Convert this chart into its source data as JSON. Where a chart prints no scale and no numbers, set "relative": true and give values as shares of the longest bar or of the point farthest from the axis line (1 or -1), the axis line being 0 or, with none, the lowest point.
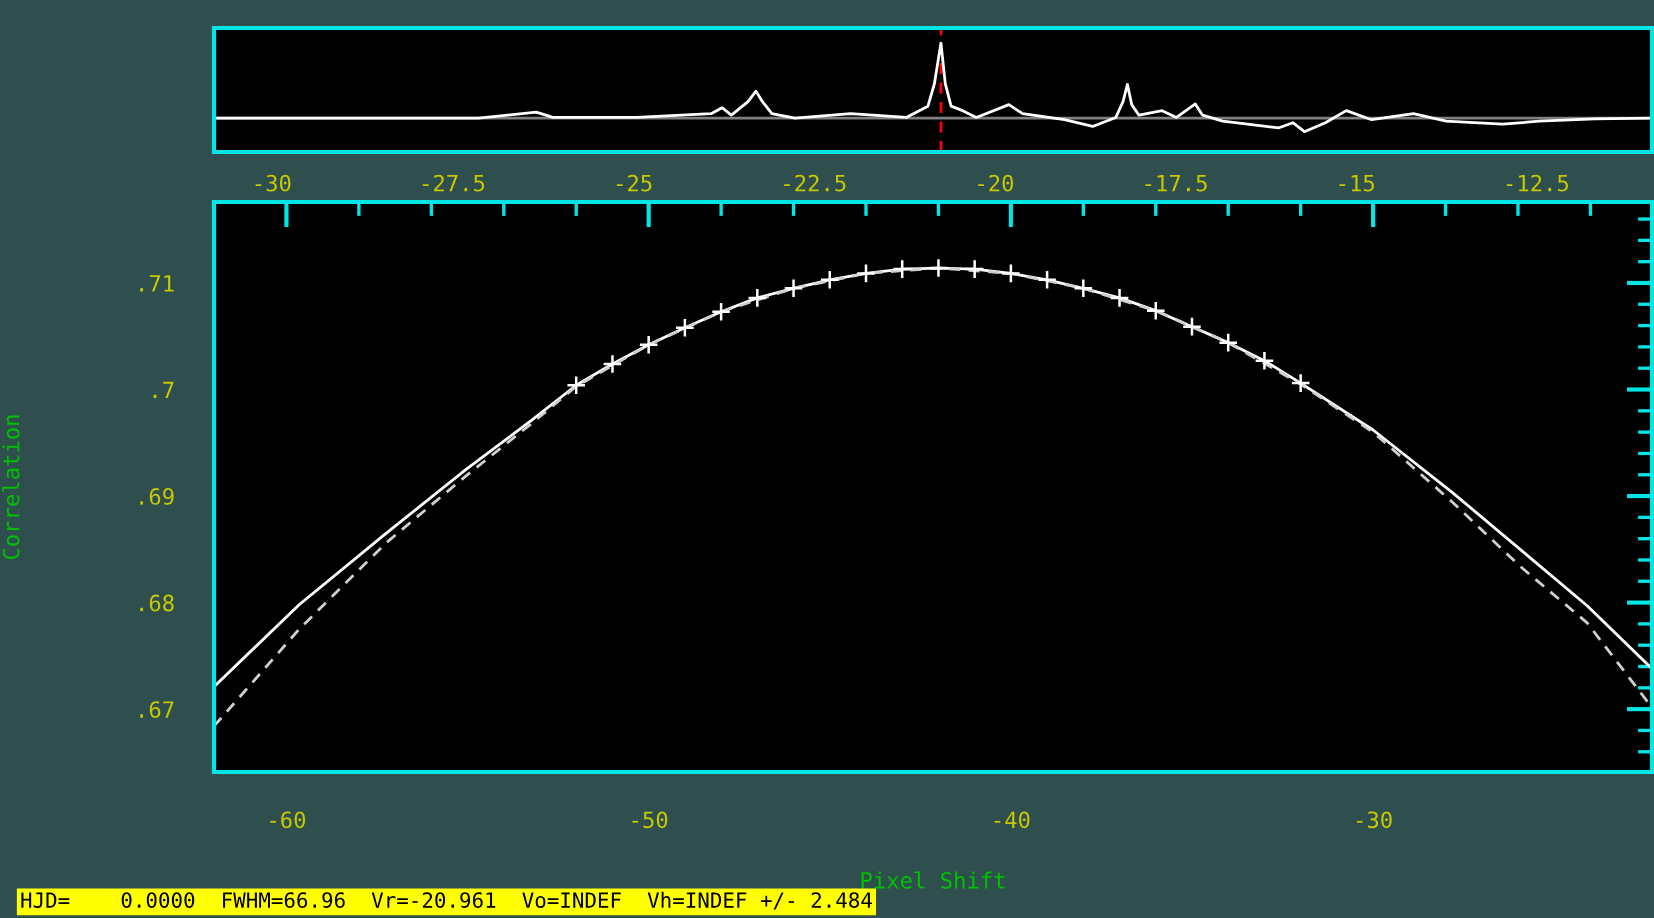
{
  "chart_data": [
    {
      "type": "line",
      "relative": true,
      "tick_labels": "x",
      "xlim": [
        -30.8,
        -10.9
      ],
      "xticks": [
        -30,
        -27.5,
        -25,
        -22.5,
        -20,
        -17.5,
        -15,
        -12.5
      ],
      "ref_lines": [
        {
          "axis": "y",
          "value": 0,
          "color": "#808080",
          "line_style": "solid"
        },
        {
          "axis": "x",
          "value": -20.74,
          "color": "#ff0000",
          "line_style": "dashed"
        }
      ],
      "series": [
        {
          "color": "#ffffff",
          "line_style": "solid",
          "marker": "none",
          "x": [
            -30.79,
            -29.07,
            -27.14,
            -26.34,
            -26.11,
            -24.95,
            -23.92,
            -23.77,
            -23.64,
            -23.41,
            -23.3,
            -23.21,
            -23.08,
            -22.76,
            -21.99,
            -21.22,
            -20.92,
            -20.83,
            -20.74,
            -20.68,
            -20.6,
            -20.44,
            -20.25,
            -19.8,
            -19.61,
            -19.03,
            -18.64,
            -18.32,
            -18.22,
            -18.16,
            -18.1,
            -18.0,
            -17.68,
            -17.48,
            -17.22,
            -17.12,
            -16.84,
            -16.07,
            -15.87,
            -15.71,
            -15.42,
            -15.13,
            -14.78,
            -14.2,
            -13.75,
            -12.97,
            -12.46,
            -11.69,
            -10.91
          ],
          "values": [
            0,
            0,
            0,
            0.08,
            0.01,
            0.01,
            0.06,
            0.14,
            0.04,
            0.22,
            0.36,
            0.22,
            0.06,
            0,
            0.06,
            0.01,
            0.16,
            0.46,
            1,
            0.46,
            0.16,
            0.1,
            0.01,
            0.18,
            0.06,
            -0.02,
            -0.11,
            0.01,
            0.22,
            0.45,
            0.18,
            0.04,
            0.1,
            0.01,
            0.19,
            0.04,
            -0.04,
            -0.13,
            -0.06,
            -0.18,
            -0.06,
            0.1,
            -0.02,
            0.06,
            -0.04,
            -0.08,
            -0.04,
            -0.01,
            0
          ]
        }
      ]
    },
    {
      "type": "line",
      "xlabel": "Pixel Shift",
      "ylabel": "Correlation",
      "xlim": [
        -62.0,
        -22.3
      ],
      "ylim": [
        0.6641,
        0.7176
      ],
      "xticks": [
        {
          "value": -60,
          "label": "-60"
        },
        {
          "value": -50,
          "label": "-50"
        },
        {
          "value": -40,
          "label": "-40"
        },
        {
          "value": -30,
          "label": "-30"
        },
        {
          "value": -58,
          "label": null
        },
        {
          "value": -56,
          "label": null
        },
        {
          "value": -54,
          "label": null
        },
        {
          "value": -52,
          "label": null
        },
        {
          "value": -48,
          "label": null
        },
        {
          "value": -46,
          "label": null
        },
        {
          "value": -44,
          "label": null
        },
        {
          "value": -42,
          "label": null
        },
        {
          "value": -38,
          "label": null
        },
        {
          "value": -36,
          "label": null
        },
        {
          "value": -34,
          "label": null
        },
        {
          "value": -32,
          "label": null
        },
        {
          "value": -28,
          "label": null
        },
        {
          "value": -26,
          "label": null
        },
        {
          "value": -24,
          "label": null
        }
      ],
      "yticks": [
        {
          "value": 0.67,
          "label": ".67"
        },
        {
          "value": 0.68,
          "label": ".68"
        },
        {
          "value": 0.69,
          "label": ".69"
        },
        {
          "value": 0.7,
          "label": ".7"
        },
        {
          "value": 0.71,
          "label": ".71"
        },
        {
          "value": 0.666,
          "label": null
        },
        {
          "value": 0.668,
          "label": null
        },
        {
          "value": 0.672,
          "label": null
        },
        {
          "value": 0.674,
          "label": null
        },
        {
          "value": 0.676,
          "label": null
        },
        {
          "value": 0.678,
          "label": null
        },
        {
          "value": 0.682,
          "label": null
        },
        {
          "value": 0.684,
          "label": null
        },
        {
          "value": 0.686,
          "label": null
        },
        {
          "value": 0.688,
          "label": null
        },
        {
          "value": 0.692,
          "label": null
        },
        {
          "value": 0.694,
          "label": null
        },
        {
          "value": 0.696,
          "label": null
        },
        {
          "value": 0.698,
          "label": null
        },
        {
          "value": 0.702,
          "label": null
        },
        {
          "value": 0.704,
          "label": null
        },
        {
          "value": 0.706,
          "label": null
        },
        {
          "value": 0.708,
          "label": null
        },
        {
          "value": 0.712,
          "label": null
        },
        {
          "value": 0.714,
          "label": null
        },
        {
          "value": 0.716,
          "label": null
        }
      ],
      "annotations": [
        "HJD=    0.0000  FWHM=66.96  Vr=-20.961  Vo=INDEF  Vh=INDEF +/- 2.484"
      ],
      "series": [
        {
          "color": "#ffffff",
          "line_style": "solid",
          "marker": "none",
          "x": [
            -62.0,
            -59.65,
            -57.25,
            -55.04,
            -53.2,
            -52,
            -51,
            -50,
            -49,
            -48,
            -47,
            -46,
            -45,
            -44,
            -43,
            -42,
            -41,
            -40,
            -39,
            -38,
            -37,
            -36,
            -35,
            -34,
            -33,
            -32,
            -30,
            -27.8,
            -25.94,
            -24.09,
            -22.3
          ],
          "values": [
            0.6721,
            0.6798,
            0.6865,
            0.6925,
            0.6972,
            0.7004,
            0.7024,
            0.7042,
            0.7058,
            0.7073,
            0.7086,
            0.7095,
            0.7103,
            0.7109,
            0.7113,
            0.7114,
            0.7113,
            0.7109,
            0.7103,
            0.7095,
            0.7086,
            0.7074,
            0.7059,
            0.7044,
            0.7027,
            0.7006,
            0.6962,
            0.6903,
            0.685,
            0.6797,
            0.6738
          ]
        },
        {
          "color": "#d0d0d0",
          "line_style": "dashed",
          "marker": "none",
          "x": [
            -62.0,
            -59.65,
            -57.25,
            -55.04,
            -53.2,
            -52,
            -50,
            -48,
            -46,
            -44,
            -42,
            -40,
            -38,
            -36,
            -34,
            -32,
            -30,
            -27.8,
            -25.94,
            -24.09,
            -22.4
          ],
          "values": [
            0.6684,
            0.6775,
            0.6856,
            0.6919,
            0.6969,
            0.7003,
            0.7042,
            0.7073,
            0.7095,
            0.7109,
            0.7114,
            0.7109,
            0.7095,
            0.7074,
            0.7044,
            0.7005,
            0.696,
            0.6894,
            0.6834,
            0.6781,
            0.6706
          ]
        },
        {
          "type": "scatter",
          "color": "#ffffff",
          "marker": "cross",
          "x": [
            -52,
            -51,
            -50,
            -49,
            -48,
            -47,
            -46,
            -45,
            -44,
            -43,
            -42,
            -41,
            -40,
            -39,
            -38,
            -37,
            -36,
            -35,
            -34,
            -33,
            -32
          ],
          "values": [
            0.7004,
            0.7024,
            0.7042,
            0.7058,
            0.7073,
            0.7086,
            0.7095,
            0.7103,
            0.7109,
            0.7113,
            0.7114,
            0.7113,
            0.7109,
            0.7103,
            0.7095,
            0.7086,
            0.7074,
            0.7059,
            0.7044,
            0.7027,
            0.7006
          ]
        }
      ]
    }
  ]
}
